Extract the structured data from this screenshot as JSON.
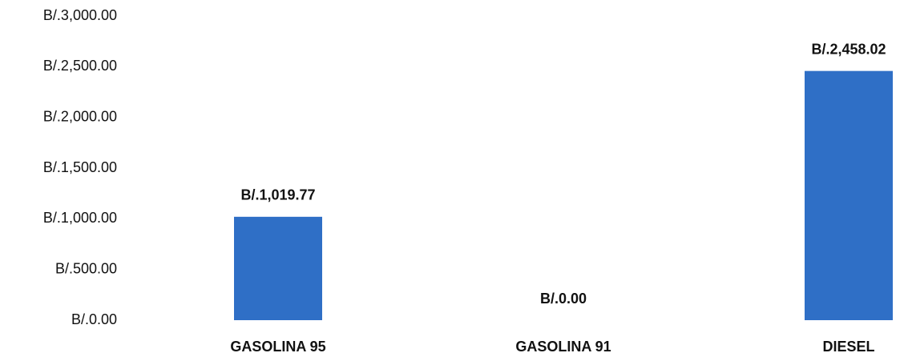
{
  "chart_data": {
    "type": "bar",
    "categories": [
      "GASOLINA 95",
      "GASOLINA 91",
      "DIESEL"
    ],
    "values": [
      1019.77,
      0,
      2458.02
    ],
    "value_labels": [
      "B/.1,019.77",
      "B/.0.00",
      "B/.2,458.02"
    ],
    "color": "#2f6fc6",
    "ylim": [
      0,
      3000
    ],
    "yticks": [
      {
        "value": 0,
        "label": "B/.0.00"
      },
      {
        "value": 500,
        "label": "B/.500.00"
      },
      {
        "value": 1000,
        "label": "B/.1,000.00"
      },
      {
        "value": 1500,
        "label": "B/.1,500.00"
      },
      {
        "value": 2000,
        "label": "B/.2,000.00"
      },
      {
        "value": 2500,
        "label": "B/.2,500.00"
      },
      {
        "value": 3000,
        "label": "B/.3,000.00"
      }
    ],
    "grid": false
  }
}
